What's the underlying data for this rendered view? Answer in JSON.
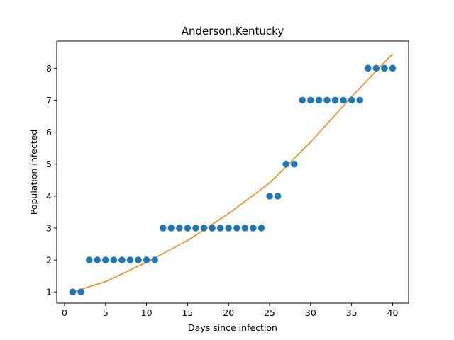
{
  "colors": {
    "points": "#1f77b4",
    "fit_line": "#ff7f0e",
    "axes": "#000000",
    "background": "#ffffff"
  },
  "chart_data": {
    "type": "scatter",
    "title": "Anderson,Kentucky",
    "xlabel": "Days since infection",
    "ylabel": "Population infected",
    "xlim": [
      -0.95,
      41.95
    ],
    "ylim": [
      0.65,
      8.85
    ],
    "xticks": [
      0,
      5,
      10,
      15,
      20,
      25,
      30,
      35,
      40
    ],
    "yticks": [
      1,
      2,
      3,
      4,
      5,
      6,
      7,
      8
    ],
    "grid": false,
    "series": [
      {
        "kind": "scatter",
        "x": [
          1,
          2,
          3,
          4,
          5,
          6,
          7,
          8,
          9,
          10,
          11,
          12,
          13,
          14,
          15,
          16,
          17,
          18,
          19,
          20,
          21,
          22,
          23,
          24,
          25,
          26,
          27,
          28,
          29,
          30,
          31,
          32,
          33,
          34,
          35,
          36,
          37,
          38,
          39,
          40
        ],
        "y": [
          1,
          1,
          2,
          2,
          2,
          2,
          2,
          2,
          2,
          2,
          2,
          3,
          3,
          3,
          3,
          3,
          3,
          3,
          3,
          3,
          3,
          3,
          3,
          3,
          4,
          4,
          5,
          5,
          7,
          7,
          7,
          7,
          7,
          7,
          7,
          7,
          8,
          8,
          8,
          8
        ]
      },
      {
        "kind": "line",
        "x": [
          1,
          5,
          10,
          15,
          20,
          25,
          30,
          35,
          40
        ],
        "y": [
          1.0,
          1.32,
          1.93,
          2.61,
          3.45,
          4.41,
          5.69,
          7.11,
          8.45
        ]
      }
    ]
  }
}
